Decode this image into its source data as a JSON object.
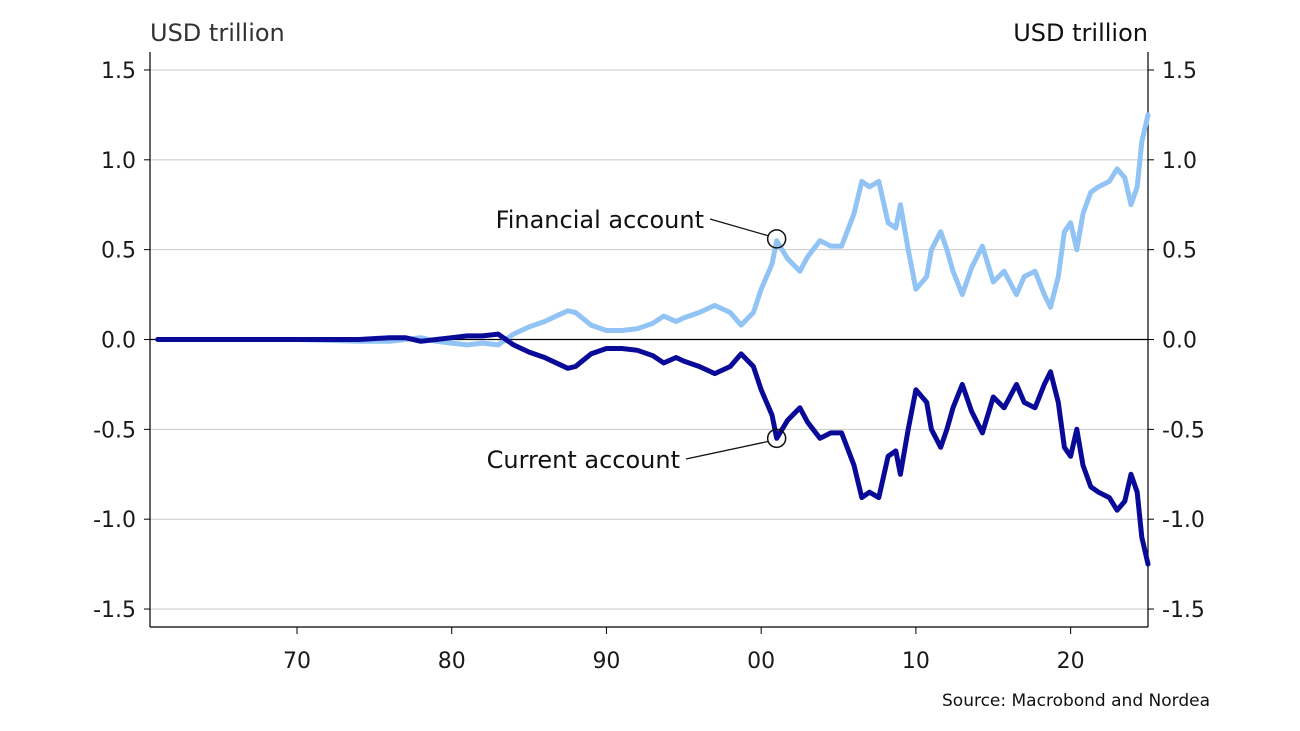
{
  "chart_data": {
    "type": "line",
    "title": "",
    "xlabel": "",
    "left_unit": "USD trillion",
    "right_unit": "USD trillion",
    "source": "Source: Macrobond and Nordea",
    "xlim": [
      1960.5,
      2025
    ],
    "ylim": [
      -1.6,
      1.6
    ],
    "y_ticks": [
      1.5,
      1.0,
      0.5,
      0.0,
      -0.5,
      -1.0,
      -1.5
    ],
    "y_tick_labels": [
      "1.5",
      "1.0",
      "0.5",
      "0.0",
      "-0.5",
      "-1.0",
      "-1.5"
    ],
    "x_ticks": [
      1970,
      1980,
      1990,
      2000,
      2010,
      2020
    ],
    "x_tick_labels": [
      "70",
      "80",
      "90",
      "00",
      "10",
      "20"
    ],
    "grid": true,
    "colors": {
      "financial": "#91c3f5",
      "current": "#0a0a99",
      "grid": "#c8c8c8",
      "axis": "#000000"
    },
    "annotations": [
      {
        "text": "Financial account",
        "series": "Financial account",
        "x": 2001,
        "y": 0.56
      },
      {
        "text": "Current account",
        "series": "Current account",
        "x": 2001,
        "y": -0.55
      }
    ],
    "series": [
      {
        "name": "Financial account",
        "color": "#91c3f5",
        "points": [
          [
            1961,
            0.0
          ],
          [
            1965,
            0.0
          ],
          [
            1970,
            0.0
          ],
          [
            1974,
            -0.01
          ],
          [
            1976,
            -0.01
          ],
          [
            1978,
            0.01
          ],
          [
            1979,
            -0.01
          ],
          [
            1980,
            -0.02
          ],
          [
            1981,
            -0.03
          ],
          [
            1982,
            -0.02
          ],
          [
            1983,
            -0.03
          ],
          [
            1984,
            0.03
          ],
          [
            1985,
            0.07
          ],
          [
            1986,
            0.1
          ],
          [
            1987,
            0.14
          ],
          [
            1987.5,
            0.16
          ],
          [
            1988,
            0.15
          ],
          [
            1989,
            0.08
          ],
          [
            1990,
            0.05
          ],
          [
            1991,
            0.05
          ],
          [
            1992,
            0.06
          ],
          [
            1993,
            0.09
          ],
          [
            1993.7,
            0.13
          ],
          [
            1994.5,
            0.1
          ],
          [
            1995,
            0.12
          ],
          [
            1996,
            0.15
          ],
          [
            1997,
            0.19
          ],
          [
            1998,
            0.15
          ],
          [
            1998.7,
            0.08
          ],
          [
            1999.5,
            0.15
          ],
          [
            2000,
            0.28
          ],
          [
            2000.7,
            0.42
          ],
          [
            2001,
            0.55
          ],
          [
            2001.7,
            0.45
          ],
          [
            2002.5,
            0.38
          ],
          [
            2003,
            0.46
          ],
          [
            2003.8,
            0.55
          ],
          [
            2004.5,
            0.52
          ],
          [
            2005.2,
            0.52
          ],
          [
            2006,
            0.7
          ],
          [
            2006.5,
            0.88
          ],
          [
            2007,
            0.85
          ],
          [
            2007.6,
            0.88
          ],
          [
            2008.2,
            0.65
          ],
          [
            2008.7,
            0.62
          ],
          [
            2009,
            0.75
          ],
          [
            2009.5,
            0.5
          ],
          [
            2010,
            0.28
          ],
          [
            2010.7,
            0.35
          ],
          [
            2011,
            0.5
          ],
          [
            2011.6,
            0.6
          ],
          [
            2012,
            0.5
          ],
          [
            2012.4,
            0.38
          ],
          [
            2013,
            0.25
          ],
          [
            2013.6,
            0.4
          ],
          [
            2014.3,
            0.52
          ],
          [
            2015,
            0.32
          ],
          [
            2015.7,
            0.38
          ],
          [
            2016.5,
            0.25
          ],
          [
            2017,
            0.35
          ],
          [
            2017.7,
            0.38
          ],
          [
            2018.3,
            0.25
          ],
          [
            2018.7,
            0.18
          ],
          [
            2019.2,
            0.35
          ],
          [
            2019.6,
            0.6
          ],
          [
            2020,
            0.65
          ],
          [
            2020.4,
            0.5
          ],
          [
            2020.8,
            0.7
          ],
          [
            2021.3,
            0.82
          ],
          [
            2021.8,
            0.85
          ],
          [
            2022.5,
            0.88
          ],
          [
            2023,
            0.95
          ],
          [
            2023.5,
            0.9
          ],
          [
            2023.9,
            0.75
          ],
          [
            2024.3,
            0.85
          ],
          [
            2024.6,
            1.1
          ],
          [
            2025,
            1.25
          ]
        ]
      },
      {
        "name": "Current account",
        "color": "#0a0a99",
        "points": [
          [
            1961,
            0.0
          ],
          [
            1965,
            0.0
          ],
          [
            1970,
            0.0
          ],
          [
            1974,
            0.0
          ],
          [
            1976,
            0.01
          ],
          [
            1977,
            0.01
          ],
          [
            1978,
            -0.01
          ],
          [
            1979,
            0.0
          ],
          [
            1980,
            0.01
          ],
          [
            1981,
            0.02
          ],
          [
            1982,
            0.02
          ],
          [
            1983,
            0.03
          ],
          [
            1984,
            -0.03
          ],
          [
            1985,
            -0.07
          ],
          [
            1986,
            -0.1
          ],
          [
            1987,
            -0.14
          ],
          [
            1987.5,
            -0.16
          ],
          [
            1988,
            -0.15
          ],
          [
            1989,
            -0.08
          ],
          [
            1990,
            -0.05
          ],
          [
            1991,
            -0.05
          ],
          [
            1992,
            -0.06
          ],
          [
            1993,
            -0.09
          ],
          [
            1993.7,
            -0.13
          ],
          [
            1994.5,
            -0.1
          ],
          [
            1995,
            -0.12
          ],
          [
            1996,
            -0.15
          ],
          [
            1997,
            -0.19
          ],
          [
            1998,
            -0.15
          ],
          [
            1998.7,
            -0.08
          ],
          [
            1999.5,
            -0.15
          ],
          [
            2000,
            -0.28
          ],
          [
            2000.7,
            -0.42
          ],
          [
            2001,
            -0.55
          ],
          [
            2001.7,
            -0.45
          ],
          [
            2002.5,
            -0.38
          ],
          [
            2003,
            -0.46
          ],
          [
            2003.8,
            -0.55
          ],
          [
            2004.5,
            -0.52
          ],
          [
            2005.2,
            -0.52
          ],
          [
            2006,
            -0.7
          ],
          [
            2006.5,
            -0.88
          ],
          [
            2007,
            -0.85
          ],
          [
            2007.6,
            -0.88
          ],
          [
            2008.2,
            -0.65
          ],
          [
            2008.7,
            -0.62
          ],
          [
            2009,
            -0.75
          ],
          [
            2009.5,
            -0.5
          ],
          [
            2010,
            -0.28
          ],
          [
            2010.7,
            -0.35
          ],
          [
            2011,
            -0.5
          ],
          [
            2011.6,
            -0.6
          ],
          [
            2012,
            -0.5
          ],
          [
            2012.4,
            -0.38
          ],
          [
            2013,
            -0.25
          ],
          [
            2013.6,
            -0.4
          ],
          [
            2014.3,
            -0.52
          ],
          [
            2015,
            -0.32
          ],
          [
            2015.7,
            -0.38
          ],
          [
            2016.5,
            -0.25
          ],
          [
            2017,
            -0.35
          ],
          [
            2017.7,
            -0.38
          ],
          [
            2018.3,
            -0.25
          ],
          [
            2018.7,
            -0.18
          ],
          [
            2019.2,
            -0.35
          ],
          [
            2019.6,
            -0.6
          ],
          [
            2020,
            -0.65
          ],
          [
            2020.4,
            -0.5
          ],
          [
            2020.8,
            -0.7
          ],
          [
            2021.3,
            -0.82
          ],
          [
            2021.8,
            -0.85
          ],
          [
            2022.5,
            -0.88
          ],
          [
            2023,
            -0.95
          ],
          [
            2023.5,
            -0.9
          ],
          [
            2023.9,
            -0.75
          ],
          [
            2024.3,
            -0.85
          ],
          [
            2024.6,
            -1.1
          ],
          [
            2025,
            -1.25
          ]
        ]
      }
    ]
  }
}
